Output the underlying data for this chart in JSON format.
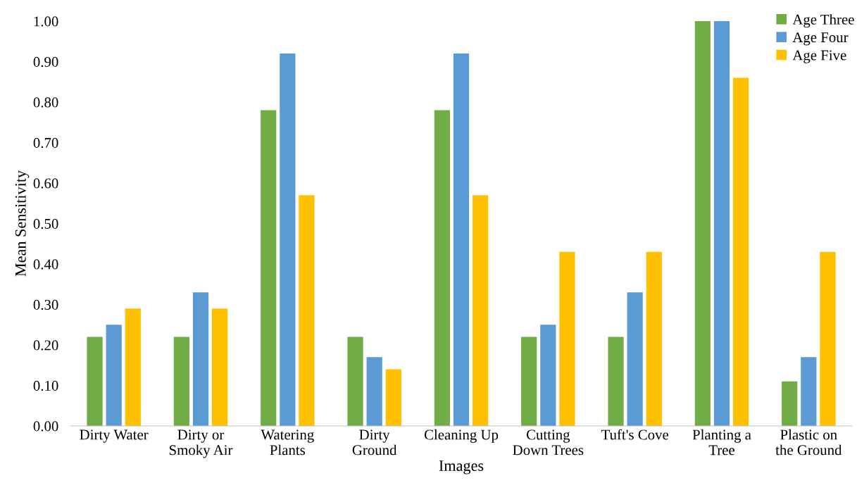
{
  "chart_data": {
    "type": "bar",
    "xlabel": "Images",
    "ylabel": "Mean Sensitivity",
    "categories": [
      "Dirty Water",
      "Dirty or\nSmoky Air",
      "Watering\nPlants",
      "Dirty\nGround",
      "Cleaning Up",
      "Cutting\nDown Trees",
      "Tuft's Cove",
      "Planting a\nTree",
      "Plastic on\nthe Ground"
    ],
    "series": [
      {
        "name": "Age Three",
        "color": "#70ad47",
        "values": [
          0.22,
          0.22,
          0.78,
          0.22,
          0.78,
          0.22,
          0.22,
          1.0,
          0.11
        ]
      },
      {
        "name": "Age Four",
        "color": "#5b9bd5",
        "values": [
          0.25,
          0.33,
          0.92,
          0.17,
          0.92,
          0.25,
          0.33,
          1.0,
          0.17
        ]
      },
      {
        "name": "Age Five",
        "color": "#ffc000",
        "values": [
          0.29,
          0.29,
          0.57,
          0.14,
          0.57,
          0.43,
          0.43,
          0.86,
          0.43
        ]
      }
    ],
    "ylim": [
      0,
      1.0
    ],
    "yticks": [
      {
        "value": 0,
        "label": "0.00"
      },
      {
        "value": 0.1,
        "label": "0.10"
      },
      {
        "value": 0.2,
        "label": "0.20"
      },
      {
        "value": 0.3,
        "label": "0.30"
      },
      {
        "value": 0.4,
        "label": "0.40"
      },
      {
        "value": 0.5,
        "label": "0.50"
      },
      {
        "value": 0.6,
        "label": "0.60"
      },
      {
        "value": 0.7,
        "label": "0.70"
      },
      {
        "value": 0.8,
        "label": "0.80"
      },
      {
        "value": 0.9,
        "label": "0.90"
      },
      {
        "value": 1.0,
        "label": "1.00"
      }
    ],
    "grid": false,
    "legend": "top right"
  }
}
